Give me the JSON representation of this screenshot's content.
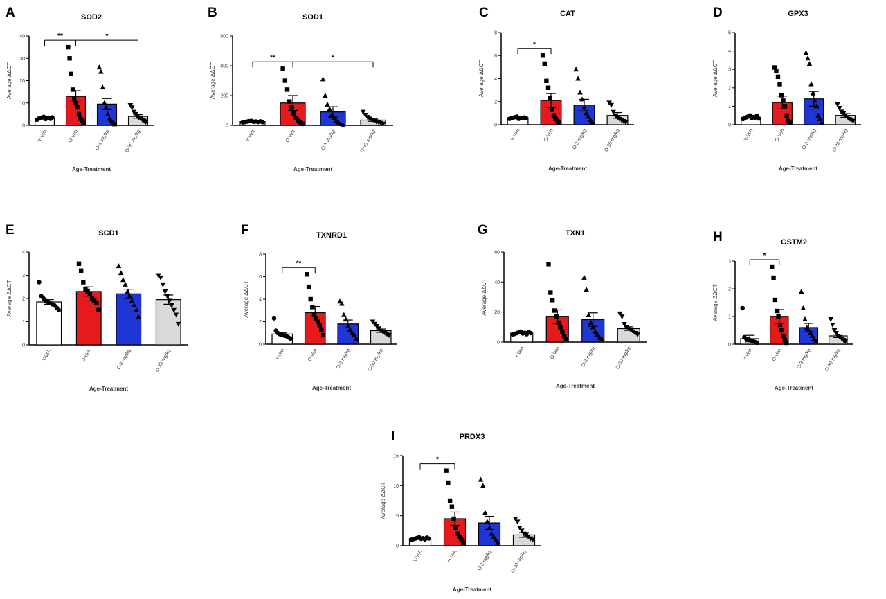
{
  "figure": {
    "groups": [
      "Y-Veh",
      "O-Veh",
      "O-3 mg/kg",
      "O-30 mg/kg"
    ],
    "group_colors": [
      "#ffffff",
      "#e41a1c",
      "#1f35d6",
      "#d9d9d9"
    ],
    "markers": [
      "circle",
      "square",
      "triangle",
      "down-triangle"
    ],
    "xlabel": "Age-Treatment",
    "ylabel": "Average ΔΔCT"
  },
  "chart_data": [
    {
      "type": "bar",
      "panel": "A",
      "title": "SOD2",
      "categories": [
        "Y-Veh",
        "O-Veh",
        "O-3 mg/kg",
        "O-30 mg/kg"
      ],
      "values": [
        3.2,
        13,
        9.5,
        4
      ],
      "errors": [
        0.3,
        2.5,
        2.5,
        0.8
      ],
      "ylim": [
        0,
        40
      ],
      "yticks": [
        0,
        10,
        20,
        30,
        40
      ],
      "ytick_labels": [
        "0",
        "10",
        "20",
        "30",
        "40"
      ],
      "points": [
        [
          2.5,
          3,
          3.2,
          3.5,
          3.8,
          2.8,
          3.1,
          3.4,
          2.9,
          3.6
        ],
        [
          35,
          30,
          23,
          16,
          12,
          10,
          8,
          5,
          3,
          2,
          1
        ],
        [
          26,
          24,
          17,
          10,
          8,
          5,
          3,
          2,
          1,
          0.5
        ],
        [
          9,
          8,
          6,
          5,
          4,
          3.5,
          3,
          2.5,
          2,
          1.5
        ]
      ],
      "significance": [
        {
          "from": 0,
          "to": 1,
          "label": "**"
        },
        {
          "from": 1,
          "to": 3,
          "label": "*"
        }
      ]
    },
    {
      "type": "bar",
      "panel": "B",
      "title": "SOD1",
      "categories": [
        "Y-Veh",
        "O-Veh",
        "O-3 mg/kg",
        "O-30 mg/kg"
      ],
      "values": [
        25,
        150,
        90,
        35
      ],
      "errors": [
        3,
        50,
        35,
        8
      ],
      "ylim": [
        0,
        600
      ],
      "yticks": [
        0,
        200,
        400,
        600
      ],
      "ytick_labels": [
        "0",
        "200",
        "400",
        "600"
      ],
      "points": [
        [
          20,
          22,
          25,
          28,
          30,
          24,
          26,
          23,
          27,
          21
        ],
        [
          380,
          300,
          240,
          160,
          120,
          80,
          50,
          30,
          20,
          10
        ],
        [
          310,
          200,
          140,
          110,
          70,
          50,
          30,
          20,
          10,
          5
        ],
        [
          90,
          70,
          55,
          45,
          35,
          30,
          25,
          20,
          15,
          10
        ]
      ],
      "significance": [
        {
          "from": 0,
          "to": 1,
          "label": "**"
        },
        {
          "from": 1,
          "to": 3,
          "label": "*"
        }
      ]
    },
    {
      "type": "bar",
      "panel": "C",
      "title": "CAT",
      "categories": [
        "Y-Veh",
        "O-Veh",
        "O-3 mg/kg",
        "O-30 mg/kg"
      ],
      "values": [
        0.6,
        2.1,
        1.7,
        0.8
      ],
      "errors": [
        0.05,
        0.6,
        0.5,
        0.25
      ],
      "ylim": [
        0,
        8
      ],
      "yticks": [
        0,
        2,
        4,
        6,
        8
      ],
      "ytick_labels": [
        "0",
        "2",
        "4",
        "6",
        "8"
      ],
      "points": [
        [
          0.5,
          0.55,
          0.6,
          0.65,
          0.7,
          0.5,
          0.6,
          0.55,
          0.62,
          0.58
        ],
        [
          6,
          5.3,
          3.8,
          3.2,
          2.3,
          1.3,
          0.8,
          0.5,
          0.3,
          0.2
        ],
        [
          4.8,
          4,
          2.8,
          2.2,
          1.5,
          1,
          0.7,
          0.4,
          0.2
        ],
        [
          1.9,
          1.7,
          1.1,
          0.8,
          0.6,
          0.5,
          0.4,
          0.3,
          0.2
        ]
      ],
      "significance": [
        {
          "from": 0,
          "to": 1,
          "label": "*"
        }
      ]
    },
    {
      "type": "bar",
      "panel": "D",
      "title": "GPX3",
      "categories": [
        "Y-Veh",
        "O-Veh",
        "O-3 mg/kg",
        "O-30 mg/kg"
      ],
      "values": [
        0.4,
        1.2,
        1.4,
        0.5
      ],
      "errors": [
        0.05,
        0.35,
        0.4,
        0.1
      ],
      "ylim": [
        0,
        5
      ],
      "yticks": [
        0,
        1,
        2,
        3,
        4,
        5
      ],
      "ytick_labels": [
        "0",
        "1",
        "2",
        "3",
        "4",
        "5"
      ],
      "points": [
        [
          0.3,
          0.35,
          0.4,
          0.45,
          0.5,
          0.35,
          0.42,
          0.38,
          0.48,
          0.33
        ],
        [
          3.1,
          2.9,
          2.6,
          2.2,
          1.6,
          1.3,
          1,
          0.5,
          0.2,
          0.1
        ],
        [
          3.9,
          3.6,
          3.3,
          2.2,
          1.7,
          1.3,
          1,
          0.5,
          0.3,
          0.1
        ],
        [
          1.1,
          0.9,
          0.7,
          0.6,
          0.5,
          0.4,
          0.3,
          0.25,
          0.2
        ]
      ],
      "significance": []
    },
    {
      "type": "bar",
      "panel": "E",
      "title": "SCD1",
      "categories": [
        "Y-Veh",
        "O-Veh",
        "O-3 mg/kg",
        "O-30 mg/kg"
      ],
      "values": [
        1.85,
        2.3,
        2.2,
        1.95
      ],
      "errors": [
        0.1,
        0.2,
        0.2,
        0.2
      ],
      "ylim": [
        0,
        4
      ],
      "yticks": [
        0,
        1,
        2,
        3,
        4
      ],
      "ytick_labels": [
        "0",
        "1",
        "2",
        "3",
        "4"
      ],
      "points": [
        [
          2.7,
          2.1,
          2,
          1.9,
          1.85,
          1.8,
          1.75,
          1.7,
          1.6,
          1.5
        ],
        [
          3.5,
          3.2,
          2.7,
          2.4,
          2.3,
          2.2,
          2,
          1.9,
          1.8,
          1.5
        ],
        [
          3.4,
          3.1,
          2.8,
          2.6,
          2.3,
          2.1,
          1.9,
          1.7,
          1.5,
          1.2
        ],
        [
          3,
          2.9,
          2.6,
          2.3,
          2.1,
          1.9,
          1.7,
          1.5,
          1.3,
          0.9
        ]
      ],
      "significance": []
    },
    {
      "type": "bar",
      "panel": "F",
      "title": "TXNRD1",
      "categories": [
        "Y-Veh",
        "O-Veh",
        "O-3 mg/kg",
        "O-30 mg/kg"
      ],
      "values": [
        0.9,
        2.8,
        1.8,
        1.2
      ],
      "errors": [
        0.1,
        0.55,
        0.35,
        0.15
      ],
      "ylim": [
        0,
        8
      ],
      "yticks": [
        0,
        2,
        4,
        6,
        8
      ],
      "ytick_labels": [
        "0",
        "2",
        "4",
        "6",
        "8"
      ],
      "points": [
        [
          2.3,
          1.2,
          1,
          0.9,
          0.85,
          0.8,
          0.75,
          0.7,
          0.6,
          0.5
        ],
        [
          6.2,
          5.1,
          4,
          3.3,
          2.6,
          2.3,
          2,
          1.7,
          1.3,
          0.8
        ],
        [
          3.8,
          3.6,
          2.6,
          2.2,
          1.6,
          1.3,
          1,
          0.8,
          0.5
        ],
        [
          2,
          1.8,
          1.6,
          1.4,
          1.2,
          1.1,
          1,
          0.9,
          0.8
        ]
      ],
      "significance": [
        {
          "from": 0,
          "to": 1,
          "label": "**"
        }
      ]
    },
    {
      "type": "bar",
      "panel": "G",
      "title": "TXN1",
      "categories": [
        "Y-Veh",
        "O-Veh",
        "O-3 mg/kg",
        "O-30 mg/kg"
      ],
      "values": [
        6,
        17,
        15,
        9
      ],
      "errors": [
        0.5,
        4.5,
        4.5,
        1.2
      ],
      "ylim": [
        0,
        60
      ],
      "yticks": [
        0,
        20,
        40,
        60
      ],
      "ytick_labels": [
        "0",
        "20",
        "40",
        "60"
      ],
      "points": [
        [
          5,
          5.5,
          6,
          6.5,
          7,
          5.8,
          6.2,
          5.2,
          6.8,
          6
        ],
        [
          52,
          33,
          28,
          21,
          17,
          13,
          10,
          7,
          4,
          2
        ],
        [
          43,
          35,
          18,
          13,
          10,
          7,
          5,
          3,
          2
        ],
        [
          19,
          17,
          12,
          10,
          9,
          8,
          7,
          6,
          5
        ]
      ],
      "significance": []
    },
    {
      "type": "bar",
      "panel": "H",
      "title": "GSTM2",
      "categories": [
        "Y-Veh",
        "O-Veh",
        "O-3 mg/kg",
        "O-30 mg/kg"
      ],
      "values": [
        0.2,
        1.0,
        0.6,
        0.3
      ],
      "errors": [
        0.12,
        0.25,
        0.15,
        0.06
      ],
      "ylim": [
        0,
        3
      ],
      "yticks": [
        0,
        1,
        2,
        3
      ],
      "ytick_labels": [
        "0",
        "1",
        "2",
        "3"
      ],
      "points": [
        [
          1.3,
          0.25,
          0.2,
          0.18,
          0.15,
          0.12,
          0.1,
          0.08,
          0.05
        ],
        [
          2.8,
          2.4,
          1.6,
          1.2,
          1,
          0.7,
          0.5,
          0.3,
          0.15,
          0.05
        ],
        [
          1.9,
          1.3,
          0.9,
          0.6,
          0.5,
          0.4,
          0.3,
          0.2,
          0.1
        ],
        [
          0.9,
          0.7,
          0.5,
          0.4,
          0.3,
          0.25,
          0.2,
          0.15,
          0.1
        ]
      ],
      "significance": [
        {
          "from": 0,
          "to": 1,
          "label": "*"
        }
      ]
    },
    {
      "type": "bar",
      "panel": "I",
      "title": "PRDX3",
      "categories": [
        "Y-Veh",
        "O-Veh",
        "O-3 mg/kg",
        "O-30 mg/kg"
      ],
      "values": [
        1.2,
        4.5,
        3.8,
        1.8
      ],
      "errors": [
        0.15,
        1.1,
        1.1,
        0.4
      ],
      "ylim": [
        0,
        15
      ],
      "yticks": [
        0,
        5,
        10,
        15
      ],
      "ytick_labels": [
        "0",
        "5",
        "10",
        "15"
      ],
      "points": [
        [
          1,
          1.1,
          1.2,
          1.3,
          1.4,
          1.15,
          1.25,
          1.05,
          1.35,
          1.2
        ],
        [
          12.5,
          10.5,
          7.5,
          6.5,
          4.5,
          3,
          2,
          1.5,
          1,
          0.5
        ],
        [
          11,
          10,
          5.5,
          4,
          3,
          2,
          1.5,
          1,
          0.5
        ],
        [
          4.5,
          4,
          3,
          2.5,
          2,
          1.8,
          1.5,
          1.2,
          1
        ]
      ],
      "significance": [
        {
          "from": 0,
          "to": 1,
          "label": "*"
        }
      ]
    }
  ]
}
